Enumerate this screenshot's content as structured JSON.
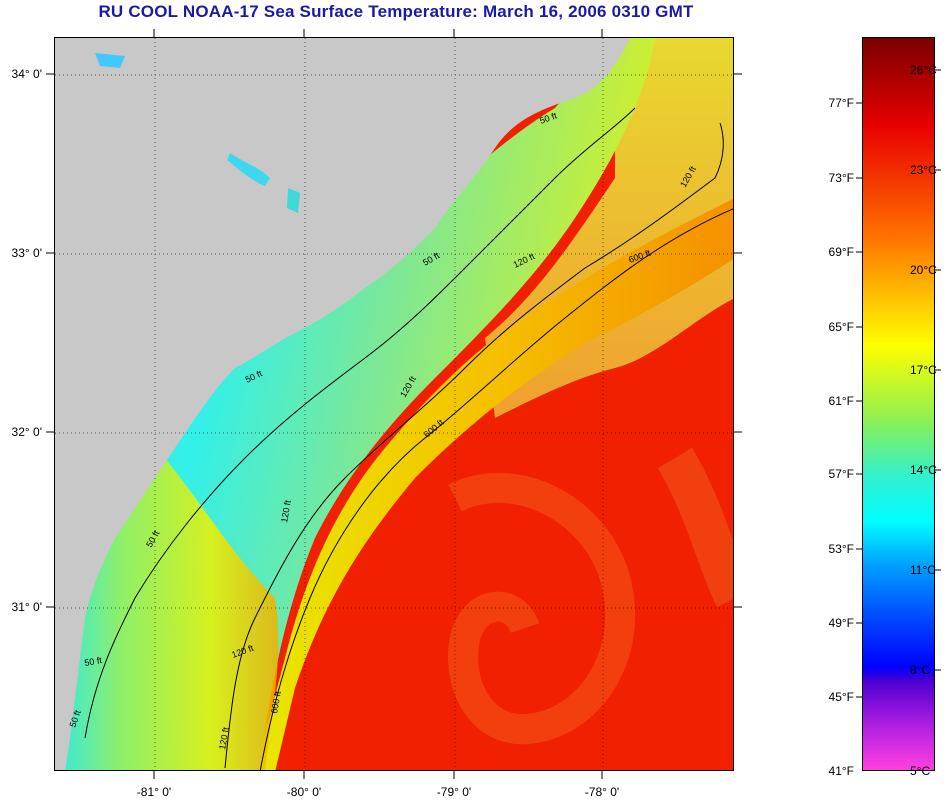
{
  "title": "RU COOL  NOAA-17  Sea Surface Temperature:  March 16, 2006 0310 GMT",
  "latitude_labels": [
    "34° 0'",
    "33° 0'",
    "32° 0'",
    "31° 0'"
  ],
  "longitude_labels": [
    "-81° 0'",
    "-80° 0'",
    "-79° 0'",
    "-78° 0'"
  ],
  "contour_labels": [
    "50 ft",
    "50 ft",
    "50 ft",
    "50 ft",
    "50 ft",
    "50 ft",
    "120 ft",
    "120 ft",
    "120 ft",
    "120 ft",
    "120 ft",
    "120 ft",
    "600 ft",
    "600 ft",
    "600 ft"
  ],
  "colorbar": {
    "fahrenheit_labels": [
      "77°F",
      "73°F",
      "69°F",
      "65°F",
      "61°F",
      "57°F",
      "53°F",
      "49°F",
      "45°F",
      "41°F"
    ],
    "celsius_labels": [
      "26°C",
      "23°C",
      "20°C",
      "17°C",
      "14°C",
      "11°C",
      "8°C",
      "5°C"
    ]
  },
  "colors": {
    "title": "#1a1aa8",
    "land": "#c8c8c8",
    "warm": "#f01a00",
    "cool": "#00ffff"
  }
}
